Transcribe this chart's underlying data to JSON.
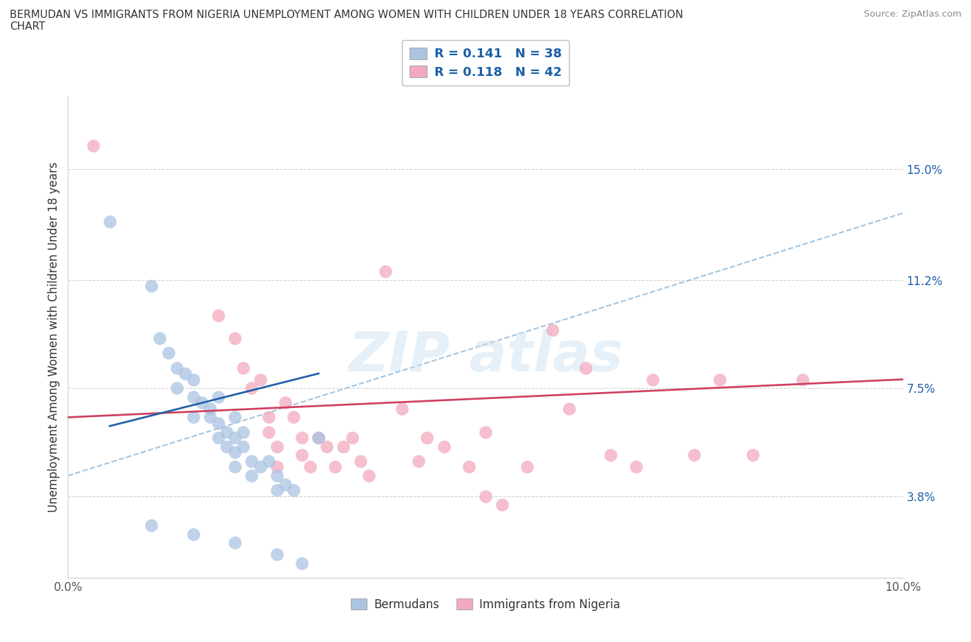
{
  "title": "BERMUDAN VS IMMIGRANTS FROM NIGERIA UNEMPLOYMENT AMONG WOMEN WITH CHILDREN UNDER 18 YEARS CORRELATION\nCHART",
  "source": "Source: ZipAtlas.com",
  "ylabel": "Unemployment Among Women with Children Under 18 years",
  "xlim": [
    0.0,
    0.1
  ],
  "ylim": [
    0.01,
    0.175
  ],
  "xticks": [
    0.0,
    0.02,
    0.04,
    0.06,
    0.08,
    0.1
  ],
  "xticklabels": [
    "0.0%",
    "",
    "",
    "",
    "",
    "10.0%"
  ],
  "ytick_positions": [
    0.038,
    0.075,
    0.112,
    0.15
  ],
  "ytick_labels": [
    "3.8%",
    "7.5%",
    "11.2%",
    "15.0%"
  ],
  "grid_color": "#cccccc",
  "background_color": "#ffffff",
  "bermudan_color": "#aac4e2",
  "nigeria_color": "#f2aabe",
  "bermudan_line_color": "#2060a8",
  "nigeria_line_color": "#d04060",
  "dashed_line_color": "#90b8d8",
  "R_bermudan": 0.141,
  "N_bermudan": 38,
  "R_nigeria": 0.118,
  "N_nigeria": 42,
  "bermudan_scatter": [
    [
      0.005,
      0.132
    ],
    [
      0.01,
      0.11
    ],
    [
      0.011,
      0.092
    ],
    [
      0.012,
      0.087
    ],
    [
      0.013,
      0.082
    ],
    [
      0.013,
      0.075
    ],
    [
      0.014,
      0.08
    ],
    [
      0.015,
      0.078
    ],
    [
      0.015,
      0.072
    ],
    [
      0.015,
      0.065
    ],
    [
      0.016,
      0.07
    ],
    [
      0.017,
      0.068
    ],
    [
      0.017,
      0.065
    ],
    [
      0.018,
      0.072
    ],
    [
      0.018,
      0.063
    ],
    [
      0.018,
      0.058
    ],
    [
      0.019,
      0.06
    ],
    [
      0.019,
      0.055
    ],
    [
      0.02,
      0.065
    ],
    [
      0.02,
      0.058
    ],
    [
      0.02,
      0.053
    ],
    [
      0.02,
      0.048
    ],
    [
      0.021,
      0.06
    ],
    [
      0.021,
      0.055
    ],
    [
      0.022,
      0.05
    ],
    [
      0.022,
      0.045
    ],
    [
      0.023,
      0.048
    ],
    [
      0.024,
      0.05
    ],
    [
      0.025,
      0.045
    ],
    [
      0.025,
      0.04
    ],
    [
      0.026,
      0.042
    ],
    [
      0.027,
      0.04
    ],
    [
      0.01,
      0.028
    ],
    [
      0.015,
      0.025
    ],
    [
      0.02,
      0.022
    ],
    [
      0.025,
      0.018
    ],
    [
      0.028,
      0.015
    ],
    [
      0.03,
      0.058
    ]
  ],
  "nigeria_scatter": [
    [
      0.003,
      0.158
    ],
    [
      0.018,
      0.1
    ],
    [
      0.02,
      0.092
    ],
    [
      0.021,
      0.082
    ],
    [
      0.022,
      0.075
    ],
    [
      0.023,
      0.078
    ],
    [
      0.024,
      0.065
    ],
    [
      0.024,
      0.06
    ],
    [
      0.025,
      0.055
    ],
    [
      0.025,
      0.048
    ],
    [
      0.026,
      0.07
    ],
    [
      0.027,
      0.065
    ],
    [
      0.028,
      0.058
    ],
    [
      0.028,
      0.052
    ],
    [
      0.029,
      0.048
    ],
    [
      0.03,
      0.058
    ],
    [
      0.031,
      0.055
    ],
    [
      0.032,
      0.048
    ],
    [
      0.033,
      0.055
    ],
    [
      0.034,
      0.058
    ],
    [
      0.035,
      0.05
    ],
    [
      0.036,
      0.045
    ],
    [
      0.038,
      0.115
    ],
    [
      0.04,
      0.068
    ],
    [
      0.042,
      0.05
    ],
    [
      0.043,
      0.058
    ],
    [
      0.045,
      0.055
    ],
    [
      0.048,
      0.048
    ],
    [
      0.05,
      0.06
    ],
    [
      0.052,
      0.035
    ],
    [
      0.055,
      0.048
    ],
    [
      0.058,
      0.095
    ],
    [
      0.06,
      0.068
    ],
    [
      0.062,
      0.082
    ],
    [
      0.065,
      0.052
    ],
    [
      0.068,
      0.048
    ],
    [
      0.07,
      0.078
    ],
    [
      0.075,
      0.052
    ],
    [
      0.078,
      0.078
    ],
    [
      0.082,
      0.052
    ],
    [
      0.088,
      0.078
    ],
    [
      0.05,
      0.038
    ]
  ],
  "bermudan_trend_x": [
    0.005,
    0.03
  ],
  "bermudan_trend_y": [
    0.062,
    0.08
  ],
  "nigeria_trend_x": [
    0.0,
    0.1
  ],
  "nigeria_trend_y": [
    0.065,
    0.078
  ],
  "dashed_trend_x": [
    0.0,
    0.1
  ],
  "dashed_trend_y": [
    0.045,
    0.135
  ]
}
